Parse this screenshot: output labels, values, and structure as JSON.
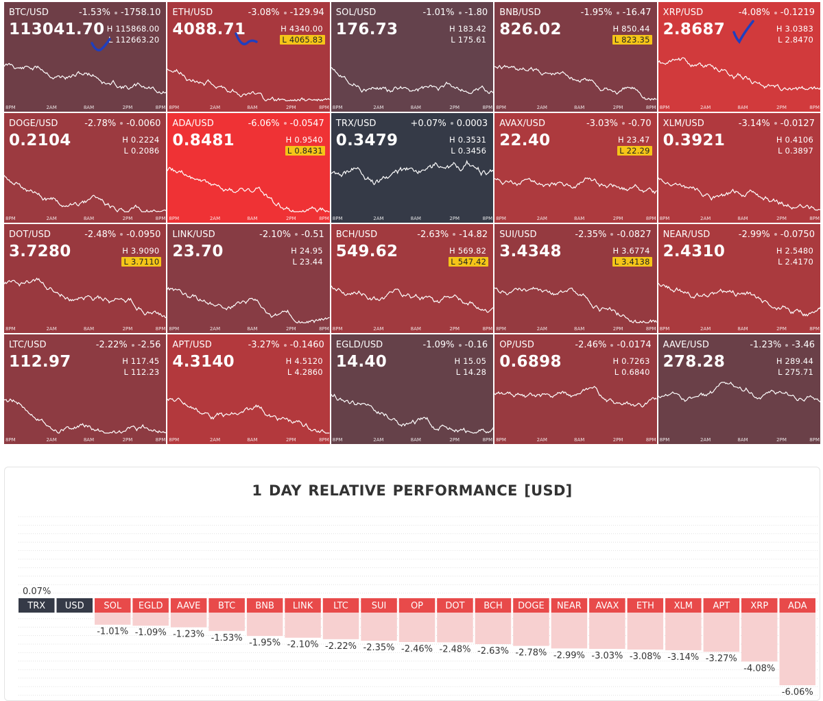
{
  "tiles": [
    {
      "symbol": "BTC/USD",
      "change_pct": "-1.53%",
      "change_abs": "-1758.10",
      "price": "113041.70",
      "high": "H 115868.00",
      "low": "L 112663.20",
      "low_highlight": false,
      "bg": "#6e3e47",
      "seed": 11,
      "check": true
    },
    {
      "symbol": "ETH/USD",
      "change_pct": "-3.08%",
      "change_abs": "-129.94",
      "price": "4088.71",
      "high": "H 4340.00",
      "low": "L 4065.83",
      "low_highlight": true,
      "bg": "#a8383e",
      "seed": 23,
      "check": true
    },
    {
      "symbol": "SOL/USD",
      "change_pct": "-1.01%",
      "change_abs": "-1.80",
      "price": "176.73",
      "high": "H 183.42",
      "low": "L 175.61",
      "low_highlight": false,
      "bg": "#64424c",
      "seed": 37,
      "check": false
    },
    {
      "symbol": "BNB/USD",
      "change_pct": "-1.95%",
      "change_abs": "-16.47",
      "price": "826.02",
      "high": "H 850.44",
      "low": "L 823.35",
      "low_highlight": true,
      "bg": "#7f3c45",
      "seed": 41,
      "check": false
    },
    {
      "symbol": "XRP/USD",
      "change_pct": "-4.08%",
      "change_abs": "-0.1219",
      "price": "2.8687",
      "high": "H 3.0383",
      "low": "L 2.8470",
      "low_highlight": false,
      "bg": "#d13a3c",
      "seed": 53,
      "check": true
    },
    {
      "symbol": "DOGE/USD",
      "change_pct": "-2.78%",
      "change_abs": "-0.0060",
      "price": "0.2104",
      "high": "H 0.2224",
      "low": "L 0.2086",
      "low_highlight": false,
      "bg": "#9c3a40",
      "seed": 61,
      "check": false
    },
    {
      "symbol": "ADA/USD",
      "change_pct": "-6.06%",
      "change_abs": "-0.0547",
      "price": "0.8481",
      "high": "H 0.9540",
      "low": "L 0.8431",
      "low_highlight": true,
      "bg": "#ef3235",
      "seed": 71,
      "check": false
    },
    {
      "symbol": "TRX/USD",
      "change_pct": "+0.07%",
      "change_abs": "0.0003",
      "price": "0.3479",
      "high": "H 0.3531",
      "low": "L 0.3456",
      "low_highlight": false,
      "bg": "#353a47",
      "seed": 83,
      "check": false
    },
    {
      "symbol": "AVAX/USD",
      "change_pct": "-3.03%",
      "change_abs": "-0.70",
      "price": "22.40",
      "high": "H 23.47",
      "low": "L 22.29",
      "low_highlight": true,
      "bg": "#ad3a3e",
      "seed": 97,
      "check": false
    },
    {
      "symbol": "XLM/USD",
      "change_pct": "-3.14%",
      "change_abs": "-0.0127",
      "price": "0.3921",
      "high": "H 0.4106",
      "low": "L 0.3897",
      "low_highlight": false,
      "bg": "#b0393e",
      "seed": 103,
      "check": false
    },
    {
      "symbol": "DOT/USD",
      "change_pct": "-2.48%",
      "change_abs": "-0.0950",
      "price": "3.7280",
      "high": "H 3.9090",
      "low": "L 3.7110",
      "low_highlight": true,
      "bg": "#99393f",
      "seed": 113,
      "check": false
    },
    {
      "symbol": "LINK/USD",
      "change_pct": "-2.10%",
      "change_abs": "-0.51",
      "price": "23.70",
      "high": "H 24.95",
      "low": "L 23.44",
      "low_highlight": false,
      "bg": "#873c44",
      "seed": 127,
      "check": false
    },
    {
      "symbol": "BCH/USD",
      "change_pct": "-2.63%",
      "change_abs": "-14.82",
      "price": "549.62",
      "high": "H 569.82",
      "low": "L 547.42",
      "low_highlight": true,
      "bg": "#a13a3f",
      "seed": 131,
      "check": false
    },
    {
      "symbol": "SUI/USD",
      "change_pct": "-2.35%",
      "change_abs": "-0.0827",
      "price": "3.4348",
      "high": "H 3.6774",
      "low": "L 3.4138",
      "low_highlight": true,
      "bg": "#953a40",
      "seed": 139,
      "check": false
    },
    {
      "symbol": "NEAR/USD",
      "change_pct": "-2.99%",
      "change_abs": "-0.0750",
      "price": "2.4310",
      "high": "H 2.5480",
      "low": "L 2.4170",
      "low_highlight": false,
      "bg": "#aa3a3e",
      "seed": 149,
      "check": false
    },
    {
      "symbol": "LTC/USD",
      "change_pct": "-2.22%",
      "change_abs": "-2.56",
      "price": "112.97",
      "high": "H 117.45",
      "low": "L 112.23",
      "low_highlight": false,
      "bg": "#8d3b42",
      "seed": 157,
      "check": false
    },
    {
      "symbol": "APT/USD",
      "change_pct": "-3.27%",
      "change_abs": "-0.1460",
      "price": "4.3140",
      "high": "H 4.5120",
      "low": "L 4.2860",
      "low_highlight": false,
      "bg": "#b3393d",
      "seed": 163,
      "check": false
    },
    {
      "symbol": "EGLD/USD",
      "change_pct": "-1.09%",
      "change_abs": "-0.16",
      "price": "14.40",
      "high": "H 15.05",
      "low": "L 14.28",
      "low_highlight": false,
      "bg": "#654149",
      "seed": 173,
      "check": false
    },
    {
      "symbol": "OP/USD",
      "change_pct": "-2.46%",
      "change_abs": "-0.0174",
      "price": "0.6898",
      "high": "H 0.7263",
      "low": "L 0.6840",
      "low_highlight": false,
      "bg": "#983a40",
      "seed": 181,
      "check": false
    },
    {
      "symbol": "AAVE/USD",
      "change_pct": "-1.23%",
      "change_abs": "-3.46",
      "price": "278.28",
      "high": "H 289.44",
      "low": "L 275.71",
      "low_highlight": false,
      "bg": "#6a4048",
      "seed": 191,
      "check": false
    }
  ],
  "time_ticks": [
    "8PM",
    "2AM",
    "8AM",
    "2PM",
    "8PM"
  ],
  "colors": {
    "positive": "#353a47",
    "negative": "#e84a4a",
    "negative_fill": "#f7d0d0",
    "checkmark": "#1f3fbf"
  },
  "chart_data": {
    "type": "bar",
    "title": "1 DAY RELATIVE PERFORMANCE  [USD]",
    "categories": [
      "TRX",
      "USD",
      "SOL",
      "EGLD",
      "AAVE",
      "BTC",
      "BNB",
      "LINK",
      "LTC",
      "SUI",
      "OP",
      "DOT",
      "BCH",
      "DOGE",
      "NEAR",
      "AVAX",
      "ETH",
      "XLM",
      "APT",
      "XRP",
      "ADA"
    ],
    "values": [
      0.07,
      0,
      -1.01,
      -1.09,
      -1.23,
      -1.53,
      -1.95,
      -2.1,
      -2.22,
      -2.35,
      -2.46,
      -2.48,
      -2.63,
      -2.78,
      -2.99,
      -3.03,
      -3.08,
      -3.14,
      -3.27,
      -4.08,
      -6.06
    ],
    "labels": [
      "0.07%",
      "",
      "-1.01%",
      "-1.09%",
      "-1.23%",
      "-1.53%",
      "-1.95%",
      "-2.10%",
      "-2.22%",
      "-2.35%",
      "-2.46%",
      "-2.48%",
      "-2.63%",
      "-2.78%",
      "-2.99%",
      "-3.03%",
      "-3.08%",
      "-3.14%",
      "-3.27%",
      "-4.08%",
      "-6.06%"
    ],
    "ylim": [
      -6.06,
      0.07
    ],
    "grid": true,
    "xlabel": "",
    "ylabel": ""
  }
}
